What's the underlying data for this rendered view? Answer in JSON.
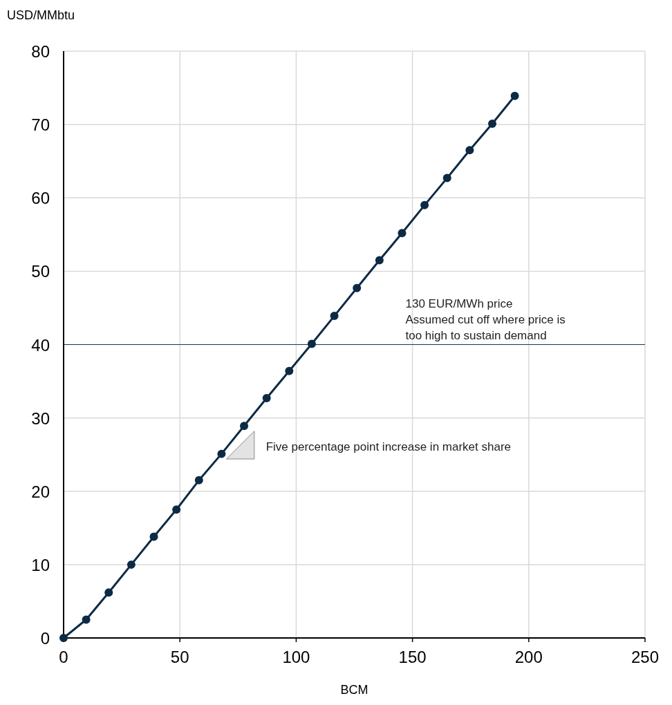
{
  "chart_data": {
    "type": "line",
    "xlabel": "BCM",
    "ylabel": "USD/MMbtu",
    "x": [
      0,
      9.7,
      19.4,
      29.1,
      38.8,
      48.5,
      58.2,
      67.9,
      77.6,
      87.3,
      97,
      106.7,
      116.4,
      126.1,
      135.8,
      145.5,
      155.2,
      164.9,
      174.6,
      184.3,
      194
    ],
    "series": [
      {
        "color": "#0d2a45",
        "values": [
          0,
          2.5,
          6.2,
          10.0,
          13.8,
          17.5,
          21.5,
          25.1,
          28.9,
          32.7,
          36.4,
          40.1,
          43.9,
          47.7,
          51.5,
          55.2,
          59.0,
          62.7,
          66.5,
          70.1,
          73.9
        ]
      }
    ],
    "xlim": [
      0,
      250
    ],
    "xticks": [
      0,
      50,
      100,
      150,
      200,
      250
    ],
    "ylim": [
      0,
      80
    ],
    "yticks": [
      0,
      10,
      20,
      30,
      40,
      50,
      60,
      70,
      80
    ],
    "grid": true,
    "marker": "circle",
    "line_style": "solid",
    "ref_lines": [
      {
        "axis": "y",
        "value": 40,
        "label": "130 EUR/MWh price\nAssumed cut off where price is too high to sustain demand",
        "color": "#1f3b57"
      }
    ],
    "annotations": [
      "Five percentage point increase in market share"
    ]
  }
}
